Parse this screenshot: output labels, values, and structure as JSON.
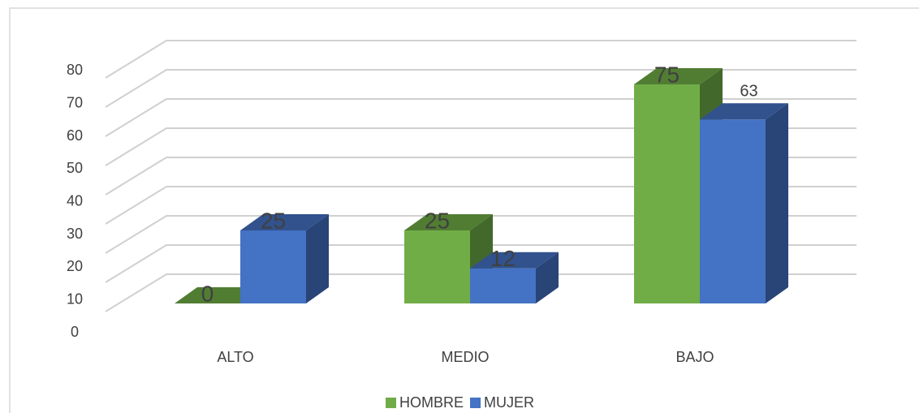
{
  "chart_data": {
    "type": "bar3d",
    "categories": [
      "ALTO",
      "MEDIO",
      "BAJO"
    ],
    "series": [
      {
        "name": "HOMBRE",
        "color": "#70ad47",
        "values": [
          0,
          25,
          75
        ]
      },
      {
        "name": "MUJER",
        "color": "#4472c4",
        "values": [
          25,
          12,
          63
        ]
      }
    ],
    "ylim": [
      0,
      80
    ],
    "yticks": [
      0,
      10,
      20,
      30,
      40,
      50,
      60,
      70,
      80
    ],
    "grid": true,
    "legend": "bottom"
  }
}
